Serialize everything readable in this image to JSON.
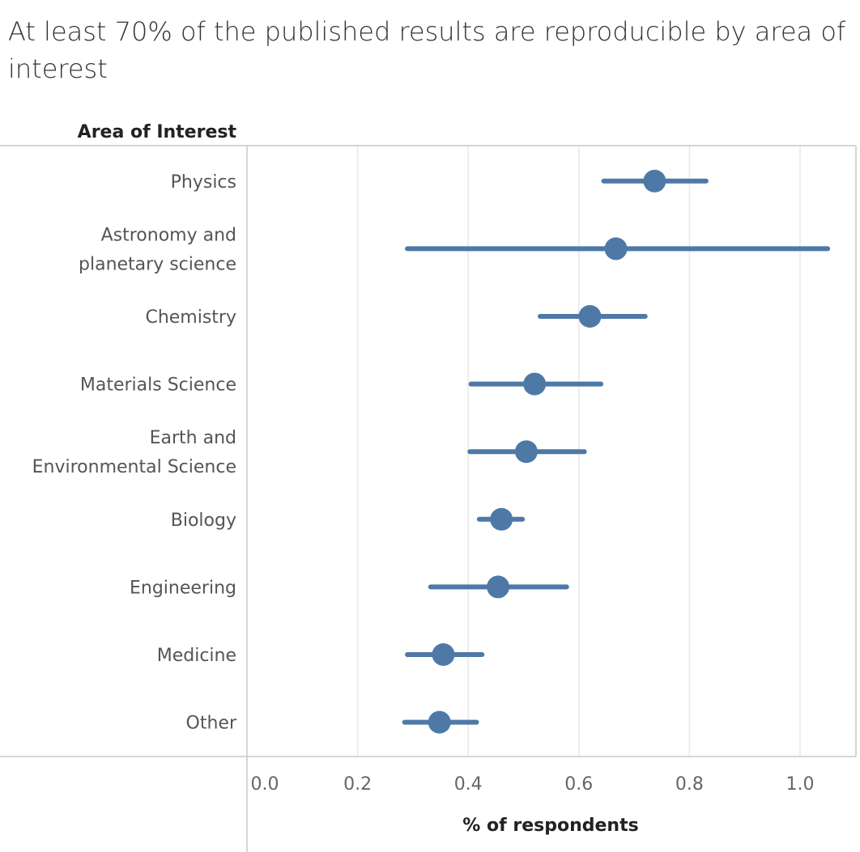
{
  "title": "At least 70% of the published results are reproducible by area of interest",
  "colors": {
    "mark": "#4e79a7",
    "grid": "#e8e8e8",
    "border": "#c8c8c8"
  },
  "chart_data": {
    "type": "scatter",
    "row_header": "Area of Interest",
    "xlabel": "% of respondents",
    "xlim": [
      0,
      1.05
    ],
    "xticks": [
      "0.0",
      "0.2",
      "0.4",
      "0.6",
      "0.8",
      "1.0"
    ],
    "grid": true,
    "categories": [
      {
        "label": [
          "Physics"
        ],
        "value": 0.737,
        "low": 0.645,
        "high": 0.83
      },
      {
        "label": [
          "Astronomy and",
          "planetary science"
        ],
        "value": 0.667,
        "low": 0.29,
        "high": 1.05
      },
      {
        "label": [
          "Chemistry"
        ],
        "value": 0.62,
        "low": 0.53,
        "high": 0.72
      },
      {
        "label": [
          "Materials Science"
        ],
        "value": 0.52,
        "low": 0.405,
        "high": 0.64
      },
      {
        "label": [
          "Earth and",
          "Environmental Science"
        ],
        "value": 0.505,
        "low": 0.403,
        "high": 0.61
      },
      {
        "label": [
          "Biology"
        ],
        "value": 0.46,
        "low": 0.42,
        "high": 0.498
      },
      {
        "label": [
          "Engineering"
        ],
        "value": 0.454,
        "low": 0.332,
        "high": 0.578
      },
      {
        "label": [
          "Medicine"
        ],
        "value": 0.355,
        "low": 0.29,
        "high": 0.425
      },
      {
        "label": [
          "Other"
        ],
        "value": 0.348,
        "low": 0.285,
        "high": 0.415
      }
    ]
  }
}
